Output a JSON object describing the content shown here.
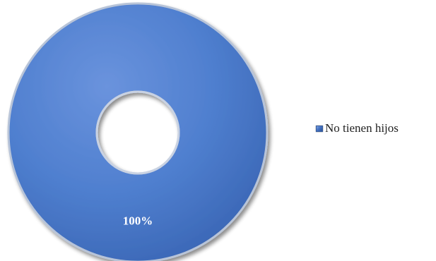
{
  "chart_data": {
    "type": "pie",
    "variant": "donut",
    "categories": [
      "No tienen hijos"
    ],
    "values": [
      100
    ],
    "data_labels": [
      "100%"
    ],
    "colors": [
      "#4472C4"
    ],
    "title": "",
    "legend_position": "right"
  },
  "legend": {
    "items": [
      {
        "label": "No tienen hijos",
        "color": "#4472C4"
      }
    ]
  }
}
